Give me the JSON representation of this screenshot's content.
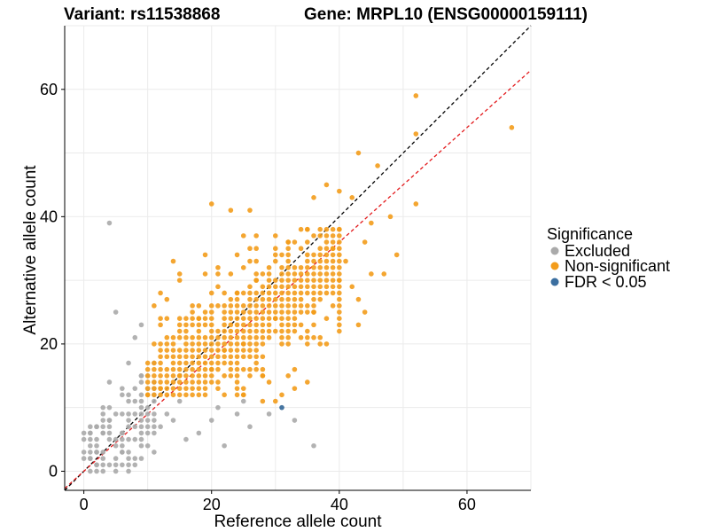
{
  "chart_data": {
    "type": "scatter",
    "title_left": "Variant: rs11538868",
    "title_right": "Gene: MRPL10 (ENSG00000159111)",
    "xlabel": "Reference allele count",
    "ylabel": "Alternative allele count",
    "xlim": [
      -3,
      70
    ],
    "ylim": [
      -3,
      70
    ],
    "xticks": [
      0,
      20,
      40,
      60
    ],
    "yticks": [
      0,
      20,
      40,
      60
    ],
    "grid": true,
    "legend": {
      "title": "Significance",
      "placement": "right",
      "entries": [
        {
          "label": "Excluded",
          "color": "#aaaaaa"
        },
        {
          "label": "Non-significant",
          "color": "#f39c1b"
        },
        {
          "label": "FDR < 0.05",
          "color": "#3b6fa0"
        }
      ]
    },
    "reference_lines": [
      {
        "name": "identity",
        "slope": 1.0,
        "intercept": 0,
        "color": "#000000",
        "dash": true
      },
      {
        "name": "fit",
        "slope": 0.9,
        "intercept": 0,
        "color": "#e31a1c",
        "dash": true
      }
    ],
    "series": [
      {
        "name": "Excluded",
        "color": "#aaaaaa",
        "points": [
          [
            4,
            39
          ],
          [
            5,
            25
          ],
          [
            36,
            4
          ],
          [
            22,
            4
          ],
          [
            1,
            6
          ],
          [
            2,
            3
          ],
          [
            3,
            6
          ],
          [
            7,
            0
          ],
          [
            1,
            2
          ],
          [
            4,
            14
          ],
          [
            3,
            2
          ],
          [
            6,
            3
          ],
          [
            8,
            1
          ],
          [
            2,
            7
          ],
          [
            5,
            9
          ],
          [
            9,
            2
          ],
          [
            10,
            4
          ],
          [
            6,
            13
          ],
          [
            3,
            10
          ],
          [
            7,
            17
          ],
          [
            8,
            21
          ],
          [
            9,
            23
          ],
          [
            7,
            11
          ],
          [
            4,
            8
          ],
          [
            11,
            6
          ],
          [
            12,
            7
          ],
          [
            14,
            8
          ],
          [
            16,
            5
          ],
          [
            18,
            6
          ],
          [
            20,
            8
          ],
          [
            24,
            9
          ],
          [
            26,
            7
          ],
          [
            29,
            9
          ],
          [
            31,
            10
          ],
          [
            33,
            8
          ],
          [
            25,
            11
          ],
          [
            21,
            10
          ],
          [
            15,
            11
          ],
          [
            13,
            9
          ],
          [
            10,
            13
          ],
          [
            9,
            15
          ],
          [
            6,
            6
          ],
          [
            2,
            1
          ],
          [
            1,
            4
          ],
          [
            8,
            5
          ],
          [
            11,
            3
          ]
        ]
      },
      {
        "name": "Non-significant",
        "color": "#f39c1b",
        "points": [
          [
            52,
            59
          ],
          [
            67,
            54
          ],
          [
            52,
            53
          ],
          [
            43,
            50
          ],
          [
            46,
            48
          ],
          [
            38,
            45
          ],
          [
            40,
            44
          ],
          [
            36,
            43
          ],
          [
            42,
            43
          ],
          [
            52,
            42
          ],
          [
            20,
            42
          ],
          [
            23,
            41
          ],
          [
            26,
            41
          ],
          [
            48,
            40
          ],
          [
            45,
            39
          ],
          [
            40,
            38
          ],
          [
            35,
            38
          ],
          [
            30,
            37
          ],
          [
            32,
            36
          ],
          [
            44,
            36
          ],
          [
            49,
            34
          ],
          [
            39,
            35
          ],
          [
            41,
            33
          ],
          [
            45,
            31
          ],
          [
            47,
            31
          ],
          [
            40,
            30
          ],
          [
            42,
            29
          ],
          [
            43,
            27
          ],
          [
            44,
            25
          ],
          [
            43,
            23
          ],
          [
            36,
            25
          ],
          [
            38,
            24
          ],
          [
            40,
            22
          ],
          [
            37,
            20
          ],
          [
            31,
            12
          ],
          [
            33,
            13
          ],
          [
            35,
            14
          ],
          [
            30,
            11
          ],
          [
            28,
            11
          ],
          [
            25,
            12
          ],
          [
            19,
            34
          ],
          [
            21,
            31
          ],
          [
            15,
            30
          ],
          [
            14,
            33
          ],
          [
            13,
            27
          ],
          [
            12,
            28
          ],
          [
            11,
            26
          ],
          [
            10,
            12
          ],
          [
            20,
            16
          ],
          [
            25,
            20
          ],
          [
            30,
            24
          ],
          [
            18,
            24
          ],
          [
            22,
            19
          ],
          [
            28,
            15
          ],
          [
            15,
            15
          ],
          [
            12,
            13
          ],
          [
            16,
            20
          ],
          [
            24,
            28
          ],
          [
            27,
            30
          ],
          [
            32,
            32
          ]
        ]
      },
      {
        "name": "FDR < 0.05",
        "color": "#3b6fa0",
        "points": [
          [
            31,
            10
          ]
        ]
      }
    ],
    "dense_cloud": {
      "series": "Non-significant",
      "description": "dense block of integer-valued points",
      "x_range": [
        10,
        40
      ],
      "y_range": [
        12,
        38
      ]
    },
    "dense_excluded": {
      "series": "Excluded",
      "x_range": [
        0,
        11
      ],
      "y_range": [
        0,
        17
      ]
    }
  }
}
